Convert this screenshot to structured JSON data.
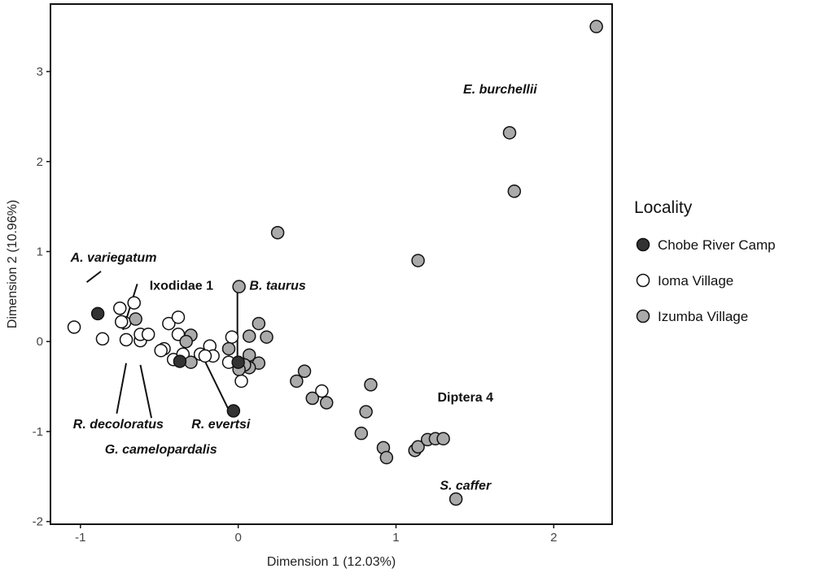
{
  "chart_data": {
    "type": "scatter",
    "xlabel": "Dimension 1 (12.03%)",
    "ylabel": "Dimension 2 (10.96%)",
    "xlim": [
      -1.19,
      2.37
    ],
    "ylim": [
      -2.03,
      3.75
    ],
    "xticks": [
      -1,
      0,
      1,
      2
    ],
    "yticks": [
      -2,
      -1,
      0,
      1,
      2,
      3
    ],
    "grid": false,
    "legend": {
      "title": "Locality",
      "placement": "right",
      "entries": [
        {
          "name": "Chobe River Camp",
          "color": "#333333"
        },
        {
          "name": "Ioma Village",
          "color": "#ffffff"
        },
        {
          "name": "Izumba Village",
          "color": "#aaaaaa"
        }
      ]
    },
    "series": [
      {
        "name": "Chobe River Camp",
        "color": "#333333",
        "points": [
          [
            -0.89,
            0.31
          ],
          [
            -0.37,
            -0.22
          ],
          [
            0.0,
            -0.23
          ],
          [
            -0.03,
            -0.77
          ]
        ]
      },
      {
        "name": "Ioma Village",
        "color": "#ffffff",
        "points": [
          [
            -1.04,
            0.16
          ],
          [
            -0.86,
            0.03
          ],
          [
            -0.75,
            0.37
          ],
          [
            -0.66,
            0.43
          ],
          [
            -0.72,
            0.21
          ],
          [
            -0.74,
            0.22
          ],
          [
            -0.71,
            0.02
          ],
          [
            -0.62,
            0.01
          ],
          [
            -0.62,
            0.08
          ],
          [
            -0.57,
            0.08
          ],
          [
            -0.44,
            0.2
          ],
          [
            -0.38,
            0.27
          ],
          [
            -0.38,
            0.08
          ],
          [
            -0.47,
            -0.08
          ],
          [
            -0.49,
            -0.1
          ],
          [
            -0.41,
            -0.2
          ],
          [
            -0.35,
            -0.14
          ],
          [
            -0.24,
            -0.14
          ],
          [
            -0.18,
            -0.05
          ],
          [
            -0.16,
            -0.16
          ],
          [
            -0.21,
            -0.16
          ],
          [
            -0.04,
            0.05
          ],
          [
            -0.06,
            -0.23
          ],
          [
            0.02,
            -0.44
          ],
          [
            0.53,
            -0.55
          ]
        ]
      },
      {
        "name": "Izumba Village",
        "color": "#aaaaaa",
        "points": [
          [
            -0.65,
            0.25
          ],
          [
            -0.3,
            0.07
          ],
          [
            -0.33,
            0.0
          ],
          [
            -0.3,
            -0.23
          ],
          [
            0.005,
            0.61
          ],
          [
            0.13,
            0.2
          ],
          [
            0.07,
            0.06
          ],
          [
            0.18,
            0.05
          ],
          [
            -0.06,
            -0.08
          ],
          [
            0.07,
            -0.15
          ],
          [
            0.13,
            -0.24
          ],
          [
            0.07,
            -0.29
          ],
          [
            0.04,
            -0.26
          ],
          [
            0.005,
            -0.31
          ],
          [
            0.42,
            -0.33
          ],
          [
            0.37,
            -0.44
          ],
          [
            0.47,
            -0.63
          ],
          [
            0.56,
            -0.68
          ],
          [
            0.84,
            -0.48
          ],
          [
            0.81,
            -0.78
          ],
          [
            0.78,
            -1.02
          ],
          [
            0.92,
            -1.18
          ],
          [
            0.94,
            -1.29
          ],
          [
            1.12,
            -1.21
          ],
          [
            1.14,
            -1.17
          ],
          [
            1.2,
            -1.09
          ],
          [
            1.25,
            -1.08
          ],
          [
            1.3,
            -1.08
          ],
          [
            1.38,
            -1.75
          ],
          [
            2.27,
            3.5
          ],
          [
            1.72,
            2.32
          ],
          [
            1.75,
            1.67
          ],
          [
            0.25,
            1.21
          ],
          [
            1.14,
            0.9
          ]
        ]
      }
    ],
    "annotations": [
      {
        "text": "E. burchellii",
        "x": 1.66,
        "y": 2.81,
        "italic": true
      },
      {
        "text": "A. variegatum",
        "x": -0.79,
        "y": 0.94,
        "italic": true,
        "line": [
          [
            -0.96,
            0.66
          ],
          [
            -0.87,
            0.78
          ]
        ]
      },
      {
        "text": "Ixodidae 1",
        "x": -0.36,
        "y": 0.63,
        "italic": false,
        "line": [
          [
            -0.64,
            0.64
          ],
          [
            -0.73,
            0.13
          ]
        ]
      },
      {
        "text": "B. taurus",
        "x": 0.25,
        "y": 0.63,
        "italic": true,
        "line": [
          [
            -0.005,
            0.61
          ],
          [
            -0.005,
            -0.23
          ]
        ]
      },
      {
        "text": "R. decoloratus",
        "x": -0.76,
        "y": -0.91,
        "italic": true,
        "line": [
          [
            -0.77,
            -0.8
          ],
          [
            -0.71,
            -0.24
          ]
        ]
      },
      {
        "text": "R. evertsi",
        "x": -0.11,
        "y": -0.91,
        "italic": true,
        "line": [
          [
            -0.23,
            -0.15
          ],
          [
            -0.06,
            -0.76
          ]
        ]
      },
      {
        "text": "G. camelopardalis",
        "x": -0.49,
        "y": -1.19,
        "italic": true,
        "line": [
          [
            -0.55,
            -0.85
          ],
          [
            -0.62,
            -0.26
          ]
        ]
      },
      {
        "text": "Diptera 4",
        "x": 1.44,
        "y": -0.61,
        "italic": false
      },
      {
        "text": "S. caffer",
        "x": 1.44,
        "y": -1.59,
        "italic": true
      }
    ]
  }
}
